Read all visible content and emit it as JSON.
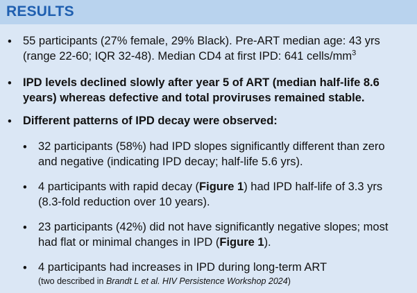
{
  "header": {
    "title": "RESULTS"
  },
  "bullet_glyph": "•",
  "items": [
    {
      "line1": "55 participants (27% female, 29% Black). Pre-ART median age: 43 yrs",
      "line2_pre": "(range 22-60; IQR 32-48). Median CD4 at first IPD: 641 cells/mm",
      "line2_sup": "3"
    },
    {
      "line1": "IPD levels declined slowly after year 5 of ART (median half-life 8.6",
      "line2": "years) whereas defective and total proviruses remained stable."
    },
    {
      "line1": "Different patterns of IPD decay were observed:"
    }
  ],
  "subitems": [
    {
      "line1": "32 participants (58%) had IPD slopes significantly different than zero",
      "line2": "and negative (indicating IPD decay; half-life 5.6 yrs)."
    },
    {
      "line1_pre": "4 participants with rapid decay (",
      "line1_bold": "Figure 1",
      "line1_post": ") had IPD half-life of 3.3 yrs",
      "line2": "(8.3-fold reduction over 10 years)."
    },
    {
      "line1": "23 participants (42%) did not have significantly negative slopes; most",
      "line2_pre": "had flat or minimal changes in IPD (",
      "line2_bold": "Figure 1",
      "line2_post": ")."
    },
    {
      "line1": "4 participants had increases in IPD during long-term ART",
      "line2_pre": "(two described in ",
      "line2_italic": "Brandt  L et al. HIV Persistence Workshop 2024",
      "line2_post": ")"
    }
  ]
}
